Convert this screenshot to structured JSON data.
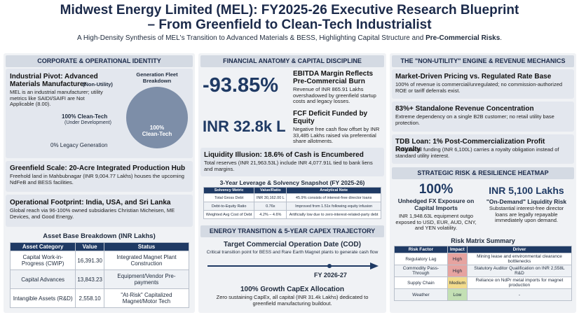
{
  "header": {
    "title_line1": "Midwest Energy Limited (MEL): FY2025-26 Executive Research Blueprint",
    "title_line2": "– From Greenfield to Clean-Tech Industrialist",
    "subtitle": "A High-Density Synthesis of MEL's Transition to Advanced Materials & BESS, Highlighting Capital Structure and ",
    "subtitle_bold": "Pre-Commercial Risks",
    "subtitle_end": "."
  },
  "corporate": {
    "heading": "CORPORATE & OPERATIONAL IDENTITY",
    "pivot": {
      "title": "Industrial Pivot: Advanced Materials Manufacturer",
      "tag": "(Non-Utility)",
      "text": "MEL is an industrial manufacturer; utility metrics like SAIDI/SAIFI are Not Applicable (8.00)."
    },
    "fleet": {
      "title": "Generation Fleet Breakdown",
      "values": [
        100,
        0
      ],
      "colors": [
        "#7d8ea8",
        "#c9ced6"
      ],
      "inner_value": "100%",
      "inner_label": "Clean-Tech",
      "clean_label": "100% Clean-Tech",
      "clean_note": "(Under Development)",
      "legacy_label": "0% Legacy Generation"
    },
    "greenfield": {
      "title": "Greenfield Scale: 20-Acre Integrated Production Hub",
      "text": "Freehold land in Mahbubnagar (INR 9,004.77 Lakhs) houses the upcoming NdFeB and BESS facilities."
    },
    "footprint": {
      "title": "Operational Footprint: India, USA, and Sri Lanka",
      "text": "Global reach via 96-100% owned subsidiaries Christian Micheisen, ME Devices, and Good Energy."
    },
    "assets": {
      "title": "Asset Base Breakdown (INR Lakhs)",
      "columns": [
        "Asset Category",
        "Value",
        "Status"
      ],
      "rows": [
        [
          "Capital Work-in-Progress (CWIP)",
          "16,391.30",
          "Integrated Magnet Plant Construction"
        ],
        [
          "Capital Advances",
          "13,843.23",
          "Equipment/Vendor Pre-payments"
        ],
        [
          "Intangible Assets (R&D)",
          "2,558.10",
          "\"At-Risk\" Capitalized Magnet/Motor Tech"
        ]
      ]
    }
  },
  "financial": {
    "heading": "FINANCIAL ANATOMY & CAPITAL DISCIPLINE",
    "ebitda": {
      "value": "-93.85%",
      "title": "EBITDA Margin Reflects Pre-Commercial Burn",
      "text": "Revenue of INR 865.91 Lakhs overshadowed by greenfield startup costs and legacy losses."
    },
    "fcf": {
      "value": "INR 32.8k L",
      "title": "FCF Deficit Funded by Equity",
      "text": "Negative free cash flow offset by INR 33,485 Lakhs raised via preferential share allotments."
    },
    "liquidity": {
      "title": "Liquidity Illusion: 18.6% of Cash is Encumbered",
      "text": "Total reserves (INR 21,963.53L) include INR 4,077.91L tied to bank liens and margins."
    },
    "leverage": {
      "title": "3-Year Leverage & Solvency Snapshot (FY 2025-26)",
      "columns": [
        "Solvency Metric",
        "Value/Ratio",
        "Analytical Note"
      ],
      "rows": [
        [
          "Total Gross Debt",
          "INR 30,162.00 L",
          "45.9% consists of interest-free director loans"
        ],
        [
          "Debt-to-Equity Ratio",
          "0.76x",
          "Improved from 1.51x following equity infusion"
        ],
        [
          "Weighted Avg Cost of Debt",
          "4.2% – 4.6%",
          "Artificially low due to zero-interest-related-party debt"
        ]
      ]
    }
  },
  "transition": {
    "heading": "ENERGY TRANSITION & 5-YEAR CAPEX TRAJECTORY",
    "cod_title": "Target Commercial Operation Date (COD)",
    "cod_text": "Critical transition point for BESS and Rare Earth Magnet plants to generate cash flow",
    "milestone": "FY 2026-27",
    "capex_title": "100% Growth CapEx Allocation",
    "capex_text": "Zero sustaining CapEx, all capital (INR 31.4k Lakhs) dedicated to greenfield manufacturing buildout."
  },
  "engine": {
    "heading": "THE \"NON-UTILITY\" ENGINE & REVENUE MECHANICS",
    "items": [
      {
        "title": "Market-Driven Pricing vs. Regulated Rate Base",
        "text": "100% of revenue is commercial/unregulated; no commission-authorized ROE or tariff deferrals exist."
      },
      {
        "title": "83%+ Standalone Revenue Concentration",
        "text": "Extreme dependency on a single B2B customer; no retail utility base protection."
      },
      {
        "title": "TDB Loan: 1% Post-Commercialization Profit Royalty",
        "text": "Institutional funding (INR 6,100L) carries a royalty obligation instead of standard utility interest."
      }
    ]
  },
  "risk": {
    "heading": "STRATEGIC RISK & RESILIENCE HEATMAP",
    "fx": {
      "value": "100%",
      "title": "Unhedged FX Exposure on Capital Imports",
      "text": "INR 1,948.63L equipment outgo exposed to USD, EUR, AUD, CNY, and YEN volatility."
    },
    "liquidity": {
      "value": "INR 5,100 Lakhs",
      "title": "\"On-Demand\" Liquidity Risk",
      "text": "Substantial interest-free director loans are legally repayable immediately upon demand."
    },
    "matrix": {
      "title": "Risk Matrix Summary",
      "columns": [
        "Risk Factor",
        "Impact",
        "Driver"
      ],
      "rows": [
        [
          "Regulatory Lag",
          "High",
          "Mining lease and environmental clearance bottlenecks"
        ],
        [
          "Commodity Pass-Through",
          "High",
          "Statutory Auditor Qualification on INR 2,558L R&D"
        ],
        [
          "Supply Chain",
          "Medium",
          "Reliance on NdPr metal imports for magnet production"
        ],
        [
          "Weather",
          "Low",
          "-"
        ]
      ],
      "impact_colors": [
        "#e6a3a0",
        "#e6a3a0",
        "#f2db8c",
        "#c3e0b4"
      ]
    }
  }
}
